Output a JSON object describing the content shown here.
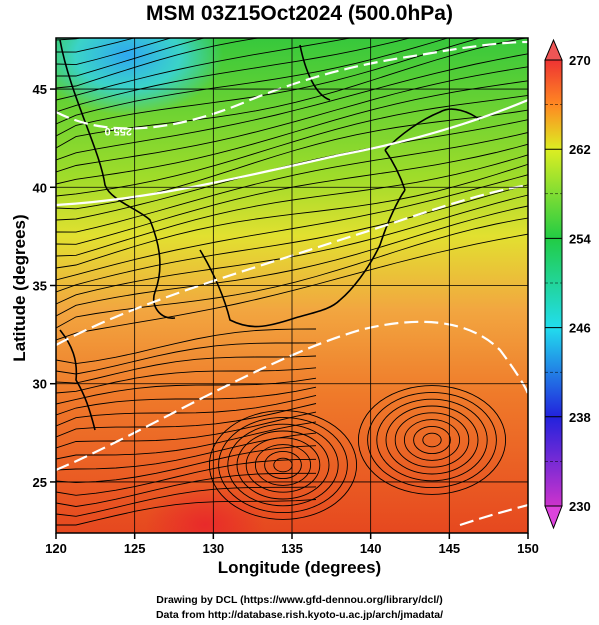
{
  "title": "MSM 03Z15Oct2024 (500.0hPa)",
  "x_axis": {
    "label": "Longitude (degrees)",
    "range": [
      120,
      150
    ],
    "ticks": [
      "120",
      "125",
      "130",
      "135",
      "140",
      "145",
      "150"
    ]
  },
  "y_axis": {
    "label": "Latitude  (degrees)",
    "range": [
      22.4,
      47.6
    ],
    "ticks": [
      "25",
      "30",
      "35",
      "40",
      "45"
    ]
  },
  "colorbar": {
    "range": [
      230,
      270
    ],
    "ticks": [
      "230",
      "238",
      "246",
      "254",
      "262",
      "270"
    ],
    "colors": [
      "#cc33cc",
      "#2222dd",
      "#22ddee",
      "#22cc44",
      "#ddee22",
      "#ff8822",
      "#ee3333"
    ]
  },
  "contour_label": "255.0",
  "credits": {
    "line1": "Drawing by DCL (https://www.gfd-dennou.org/library/dcl/)",
    "line2": "Data from http://database.rish.kyoto-u.ac.jp/arch/jmadata/"
  }
}
